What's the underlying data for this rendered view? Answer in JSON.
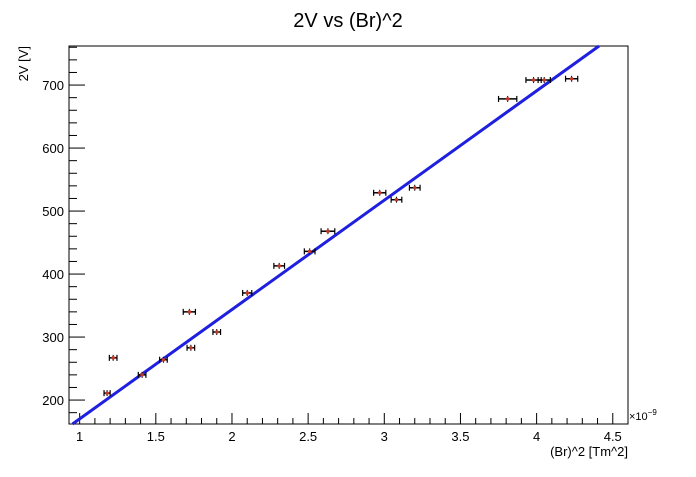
{
  "chart_data": {
    "type": "scatter",
    "title": "2V vs (Br)^2",
    "xlabel": "(Br)^2 [Tm^2]",
    "ylabel": "2V [V]",
    "x_multiplier": "×10",
    "x_multiplier_exponent": "−9",
    "xlim": [
      0.93,
      4.6
    ],
    "ylim": [
      162,
      762
    ],
    "xticks": [
      1,
      1.5,
      2,
      2.5,
      3,
      3.5,
      4,
      4.5
    ],
    "xtick_labels": [
      "1",
      "1.5",
      "2",
      "2.5",
      "3",
      "3.5",
      "4",
      "4.5"
    ],
    "yticks": [
      200,
      300,
      400,
      500,
      600,
      700
    ],
    "ytick_labels": [
      "200",
      "300",
      "400",
      "500",
      "600",
      "700"
    ],
    "grid": false,
    "legend": "none",
    "series": [
      {
        "type": "scatter",
        "color": "#c0392b",
        "errorbar_color": "#000000",
        "points": [
          {
            "x": 1.18,
            "y": 211,
            "xerr": 0.02
          },
          {
            "x": 1.22,
            "y": 267,
            "xerr": 0.025
          },
          {
            "x": 1.41,
            "y": 240,
            "xerr": 0.025
          },
          {
            "x": 1.55,
            "y": 264,
            "xerr": 0.025
          },
          {
            "x": 1.72,
            "y": 340,
            "xerr": 0.04
          },
          {
            "x": 1.73,
            "y": 283,
            "xerr": 0.025
          },
          {
            "x": 1.9,
            "y": 308,
            "xerr": 0.025
          },
          {
            "x": 2.1,
            "y": 370,
            "xerr": 0.03
          },
          {
            "x": 2.31,
            "y": 413,
            "xerr": 0.035
          },
          {
            "x": 2.51,
            "y": 436,
            "xerr": 0.035
          },
          {
            "x": 2.63,
            "y": 468,
            "xerr": 0.045
          },
          {
            "x": 2.97,
            "y": 529,
            "xerr": 0.04
          },
          {
            "x": 3.08,
            "y": 518,
            "xerr": 0.035
          },
          {
            "x": 3.2,
            "y": 537,
            "xerr": 0.035
          },
          {
            "x": 3.81,
            "y": 678,
            "xerr": 0.06
          },
          {
            "x": 3.98,
            "y": 708,
            "xerr": 0.05
          },
          {
            "x": 4.05,
            "y": 708,
            "xerr": 0.04
          },
          {
            "x": 4.23,
            "y": 710,
            "xerr": 0.04
          }
        ]
      },
      {
        "type": "line",
        "color": "#1f1fe0",
        "x": [
          0.93,
          4.41
        ],
        "y": [
          158,
          762
        ]
      }
    ]
  }
}
